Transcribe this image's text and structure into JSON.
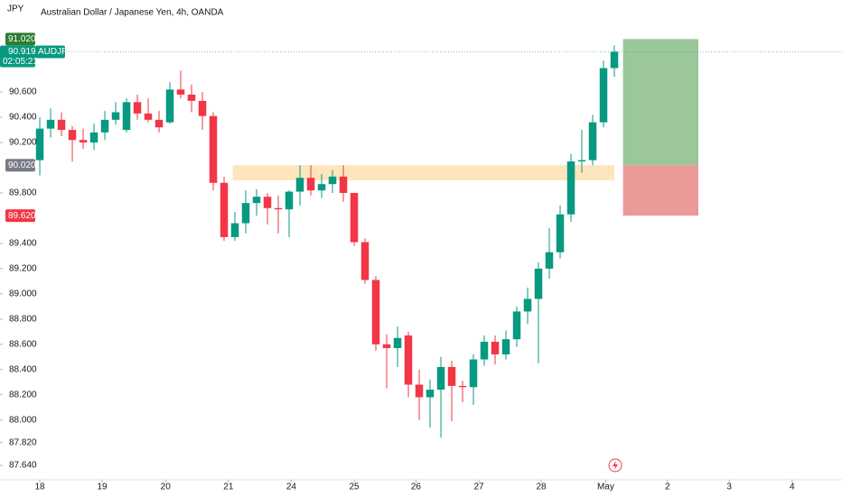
{
  "chart_data": {
    "type": "candlestick",
    "currency": "JPY",
    "title": "Australian Dollar / Japanese Yen, 4h, OANDA",
    "symbol": "AUDJPY",
    "countdown": "02:05:21",
    "up_color": "#089981",
    "down_color": "#f23645",
    "open": [
      90.06,
      90.31,
      90.38,
      90.3,
      90.22,
      90.2,
      90.28,
      90.38,
      90.3,
      90.52,
      90.43,
      90.38,
      90.36,
      90.62,
      90.58,
      90.53,
      90.41,
      89.88,
      89.45,
      89.56,
      89.72,
      89.77,
      89.68,
      89.67,
      89.81,
      89.92,
      89.82,
      89.87,
      89.93,
      89.8,
      89.41,
      89.11,
      88.6,
      88.57,
      88.67,
      88.28,
      88.18,
      88.24,
      88.42,
      88.27,
      88.26,
      88.48,
      88.62,
      88.52,
      88.64,
      88.86,
      88.96,
      89.2,
      89.33,
      89.63,
      90.05,
      90.06,
      90.36,
      90.79
    ],
    "high": [
      90.4,
      90.47,
      90.44,
      90.33,
      90.31,
      90.35,
      90.45,
      90.52,
      90.55,
      90.58,
      90.55,
      90.45,
      90.68,
      90.77,
      90.66,
      90.6,
      90.44,
      89.93,
      89.65,
      89.82,
      89.83,
      89.8,
      89.78,
      89.82,
      90.02,
      90.02,
      89.95,
      89.98,
      90.02,
      89.8,
      89.44,
      89.14,
      88.68,
      88.74,
      88.7,
      88.4,
      88.32,
      88.5,
      88.47,
      88.31,
      88.52,
      88.67,
      88.67,
      88.71,
      88.9,
      89.05,
      89.25,
      89.52,
      89.7,
      90.11,
      90.3,
      90.42,
      90.85,
      90.97
    ],
    "low": [
      89.94,
      90.24,
      90.25,
      90.05,
      90.15,
      90.14,
      90.22,
      90.34,
      90.28,
      90.38,
      90.36,
      90.28,
      90.35,
      90.55,
      90.44,
      90.3,
      89.82,
      89.42,
      89.42,
      89.48,
      89.62,
      89.55,
      89.48,
      89.45,
      89.7,
      89.78,
      89.76,
      89.8,
      89.73,
      89.38,
      89.08,
      88.55,
      88.25,
      88.42,
      88.18,
      88.0,
      87.94,
      87.86,
      87.99,
      88.14,
      88.12,
      88.43,
      88.44,
      88.48,
      88.58,
      88.76,
      88.45,
      89.12,
      89.28,
      89.57,
      89.96,
      90.02,
      90.32,
      90.72
    ],
    "close": [
      90.31,
      90.38,
      90.3,
      90.22,
      90.2,
      90.28,
      90.38,
      90.44,
      90.52,
      90.43,
      90.38,
      90.32,
      90.62,
      90.58,
      90.53,
      90.41,
      89.88,
      89.45,
      89.56,
      89.72,
      89.77,
      89.68,
      89.67,
      89.81,
      89.92,
      89.82,
      89.87,
      89.93,
      89.8,
      89.41,
      89.11,
      88.6,
      88.57,
      88.65,
      88.28,
      88.18,
      88.24,
      88.42,
      88.27,
      88.26,
      88.48,
      88.62,
      88.52,
      88.64,
      88.86,
      88.96,
      89.2,
      89.33,
      89.63,
      90.05,
      90.06,
      90.36,
      90.79,
      90.92
    ],
    "xlim": [
      -3.67,
      74
    ],
    "ylim": [
      87.54,
      91.33
    ],
    "xticks": [
      {
        "value": 0,
        "label": "18"
      },
      {
        "value": 5.75,
        "label": "19"
      },
      {
        "value": 11.6,
        "label": "20"
      },
      {
        "value": 17.4,
        "label": "21"
      },
      {
        "value": 23.2,
        "label": "24"
      },
      {
        "value": 29.0,
        "label": "25"
      },
      {
        "value": 34.7,
        "label": "26"
      },
      {
        "value": 40.5,
        "label": "27"
      },
      {
        "value": 46.25,
        "label": "28"
      },
      {
        "value": 52.2,
        "label": "May"
      },
      {
        "value": 57.9,
        "label": "2"
      },
      {
        "value": 63.6,
        "label": "3"
      },
      {
        "value": 69.4,
        "label": "4"
      }
    ],
    "yticks": [
      {
        "value": 87.64,
        "label": "87.640"
      },
      {
        "value": 87.82,
        "label": "87.820"
      },
      {
        "value": 88.0,
        "label": "88.000"
      },
      {
        "value": 88.2,
        "label": "88.200"
      },
      {
        "value": 88.4,
        "label": "88.400"
      },
      {
        "value": 88.6,
        "label": "88.600"
      },
      {
        "value": 88.8,
        "label": "88.800"
      },
      {
        "value": 89.0,
        "label": "89.000"
      },
      {
        "value": 89.2,
        "label": "89.200"
      },
      {
        "value": 89.4,
        "label": "89.400"
      },
      {
        "value": 89.8,
        "label": "89.800"
      },
      {
        "value": 90.2,
        "label": "90.200"
      },
      {
        "value": 90.4,
        "label": "90.400"
      },
      {
        "value": 90.6,
        "label": "90.600"
      }
    ],
    "last_price": {
      "value": 90.919,
      "label": "90.919"
    },
    "zone": {
      "top": 90.02,
      "bottom": 89.9,
      "x": [
        17.8,
        53.0
      ],
      "color": "#ffe0b2"
    },
    "position": {
      "target": {
        "value": 91.02,
        "label": "91.020"
      },
      "entry": {
        "value": 90.02,
        "label": "90.020"
      },
      "stop": {
        "value": 89.62,
        "label": "89.620"
      },
      "x": [
        53.8,
        60.75
      ],
      "profit_color": "#9bc79b",
      "loss_color": "#eb9999"
    }
  }
}
